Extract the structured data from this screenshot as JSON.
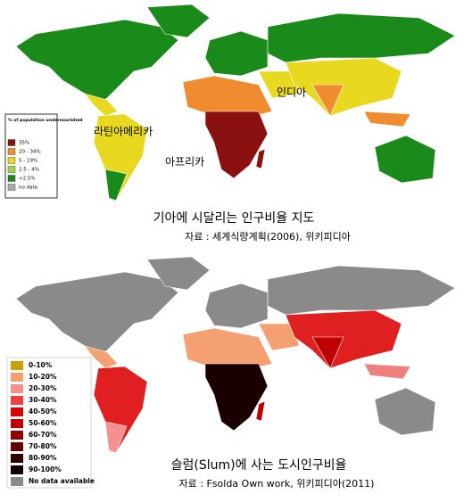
{
  "hunger_map": {
    "legend": {
      "title": "% of population undernourished",
      "items": [
        {
          "label": "35%",
          "color": "#8b1010"
        },
        {
          "label": "20 - 34%",
          "color": "#f08c30"
        },
        {
          "label": "5 - 19%",
          "color": "#e8d820"
        },
        {
          "label": "2.5 - 4%",
          "color": "#9ed840"
        },
        {
          "label": "<2.5%",
          "color": "#1a8a1a"
        },
        {
          "label": "no data",
          "color": "#aaaaaa"
        }
      ]
    },
    "labels": [
      "라틴아메리카",
      "아프리카",
      "인디아"
    ],
    "caption": "기아에 시달리는 인구비율 지도",
    "source": "자료 : 세계식량계획(2006), 위키피디아"
  },
  "slum_map": {
    "legend": {
      "items": [
        {
          "label": "0-10%",
          "color": "#c8a000"
        },
        {
          "label": "10-20%",
          "color": "#f4a070"
        },
        {
          "label": "20-30%",
          "color": "#f49090"
        },
        {
          "label": "30-40%",
          "color": "#f04040"
        },
        {
          "label": "40-50%",
          "color": "#e00000"
        },
        {
          "label": "50-60%",
          "color": "#c00000"
        },
        {
          "label": "60-70%",
          "color": "#900000"
        },
        {
          "label": "70-80%",
          "color": "#600000"
        },
        {
          "label": "80-90%",
          "color": "#300000"
        },
        {
          "label": "90-100%",
          "color": "#100000"
        },
        {
          "label": "No data available",
          "color": "#8a8a8a"
        }
      ]
    },
    "caption": "슬럼(Slum)에 사는 도시인구비율",
    "source": "자료 : Fsolda Own work, 위키피디아(2011)"
  }
}
